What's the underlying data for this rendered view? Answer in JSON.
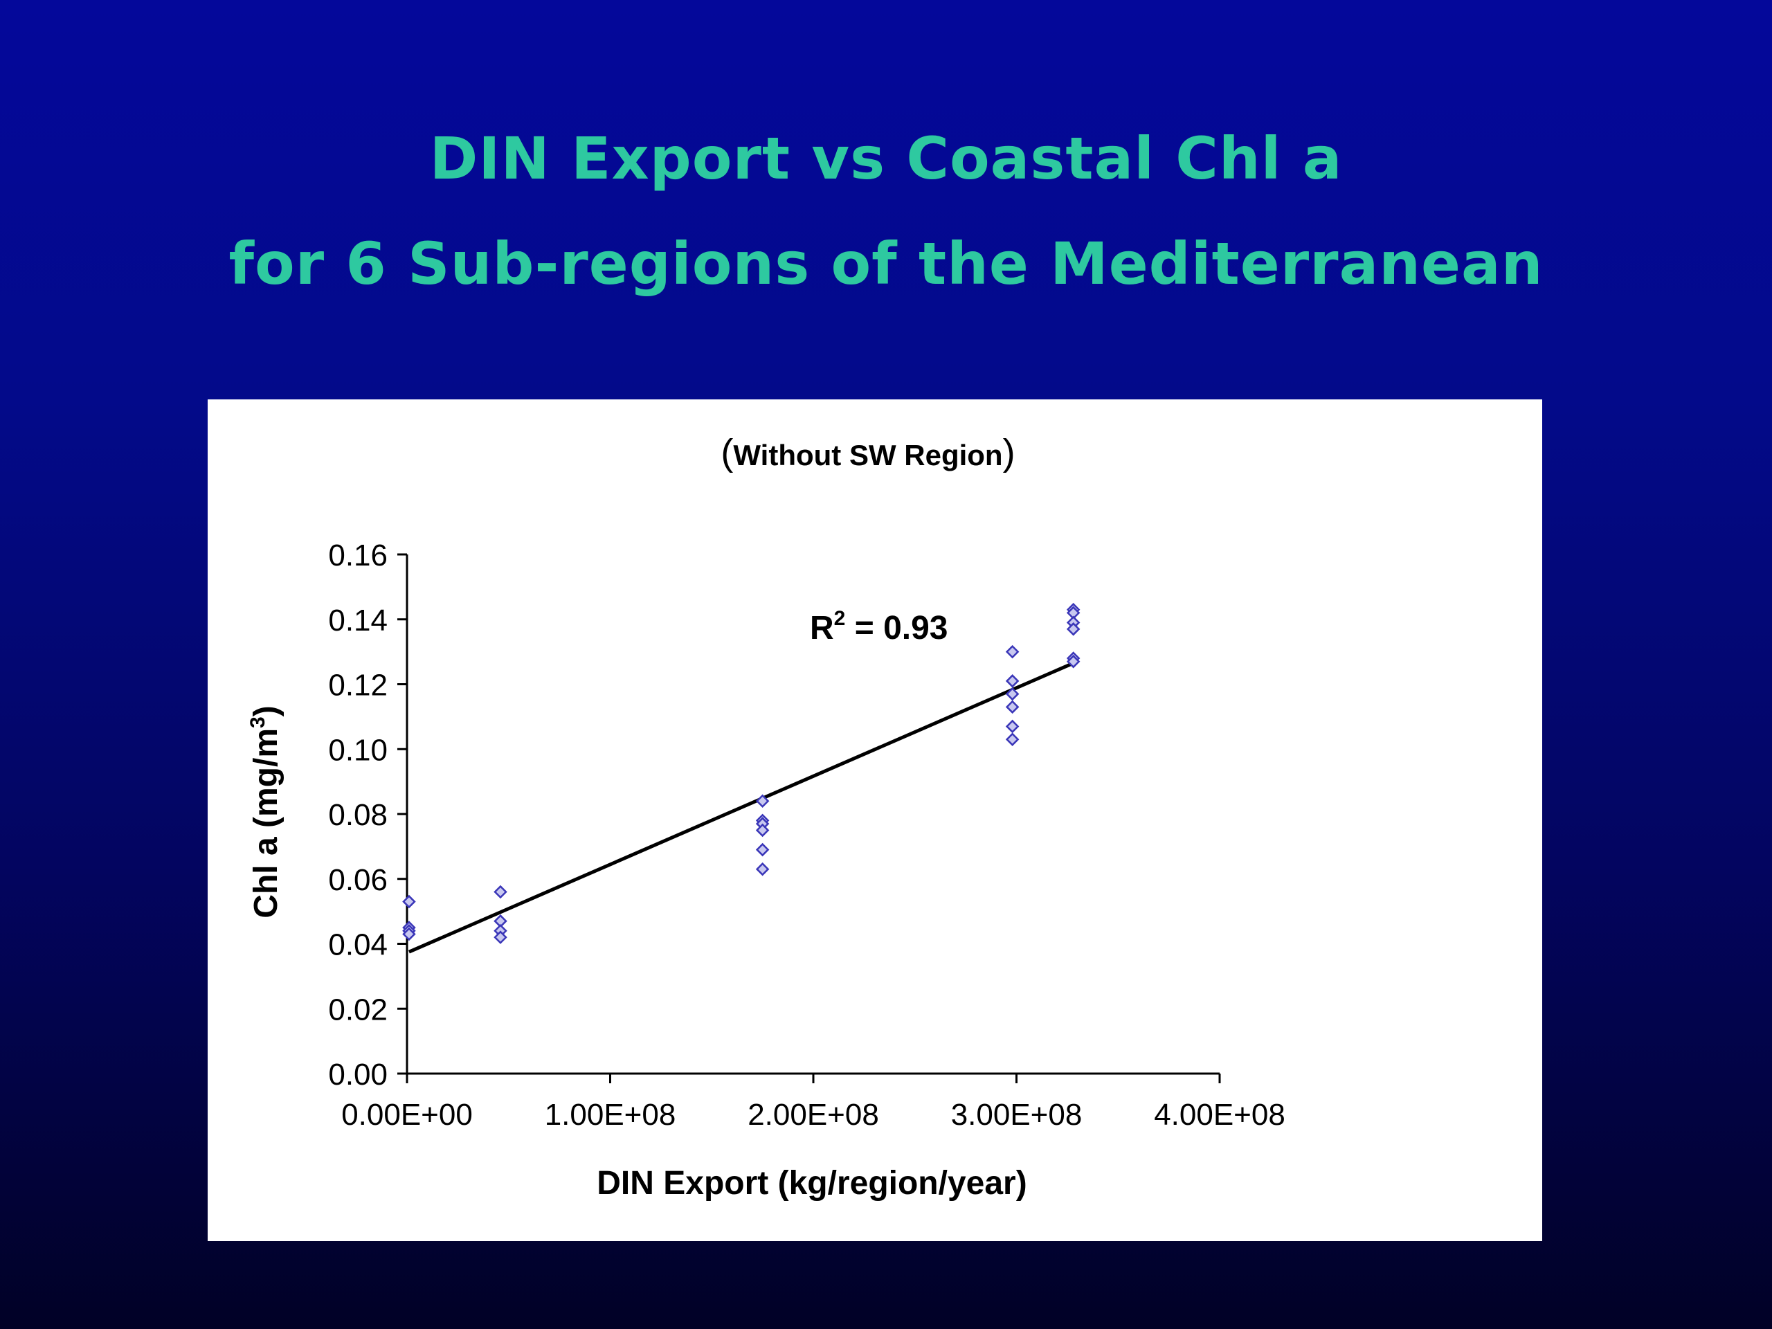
{
  "slide": {
    "title_line_1": "DIN Export vs Coastal Chl a",
    "title_line_2": "for 6 Sub-regions of the Mediterranean"
  },
  "colors": {
    "background_top": "#04089a",
    "background_bottom": "#010126",
    "title": "#2ec9a0",
    "panel": "#ffffff",
    "marker": "#3a36b8",
    "marker_fill": "#c8c8f0",
    "trendline": "#000000"
  },
  "chart_data": {
    "type": "scatter",
    "subtitle_open": "(",
    "subtitle": "Without SW Region",
    "subtitle_close": ")",
    "xlabel": "DIN Export (kg/region/year)",
    "ylabel_main": "Chl a (mg/m",
    "ylabel_sup": "3",
    "ylabel_close": ")",
    "xlim": [
      0,
      400000000
    ],
    "ylim": [
      0,
      0.16
    ],
    "xticks": [
      0,
      100000000,
      200000000,
      300000000,
      400000000
    ],
    "xtick_labels": [
      "0.00E+00",
      "1.00E+08",
      "2.00E+08",
      "3.00E+08",
      "4.00E+08"
    ],
    "yticks": [
      0,
      0.02,
      0.04,
      0.06,
      0.08,
      0.1,
      0.12,
      0.14,
      0.16
    ],
    "ytick_labels": [
      "0.00",
      "0.02",
      "0.04",
      "0.06",
      "0.08",
      "0.10",
      "0.12",
      "0.14",
      "0.16"
    ],
    "grid": false,
    "legend": "none",
    "marker": "diamond",
    "points": [
      {
        "x": 1000000,
        "y": 0.053
      },
      {
        "x": 1000000,
        "y": 0.045
      },
      {
        "x": 1000000,
        "y": 0.044
      },
      {
        "x": 1000000,
        "y": 0.043
      },
      {
        "x": 46000000,
        "y": 0.056
      },
      {
        "x": 46000000,
        "y": 0.047
      },
      {
        "x": 46000000,
        "y": 0.044
      },
      {
        "x": 46000000,
        "y": 0.042
      },
      {
        "x": 175000000,
        "y": 0.084
      },
      {
        "x": 175000000,
        "y": 0.078
      },
      {
        "x": 175000000,
        "y": 0.077
      },
      {
        "x": 175000000,
        "y": 0.075
      },
      {
        "x": 175000000,
        "y": 0.069
      },
      {
        "x": 175000000,
        "y": 0.063
      },
      {
        "x": 298000000,
        "y": 0.13
      },
      {
        "x": 298000000,
        "y": 0.121
      },
      {
        "x": 298000000,
        "y": 0.117
      },
      {
        "x": 298000000,
        "y": 0.113
      },
      {
        "x": 298000000,
        "y": 0.107
      },
      {
        "x": 298000000,
        "y": 0.103
      },
      {
        "x": 328000000,
        "y": 0.143
      },
      {
        "x": 328000000,
        "y": 0.142
      },
      {
        "x": 328000000,
        "y": 0.139
      },
      {
        "x": 328000000,
        "y": 0.137
      },
      {
        "x": 328000000,
        "y": 0.128
      },
      {
        "x": 328000000,
        "y": 0.127
      }
    ],
    "trendline": {
      "type": "linear",
      "x": [
        1000000,
        328000000
      ],
      "y": [
        0.0375,
        0.1265
      ]
    },
    "annotation": {
      "r_label": "R",
      "r_sup": "2",
      "r_value": " = 0.93"
    }
  }
}
